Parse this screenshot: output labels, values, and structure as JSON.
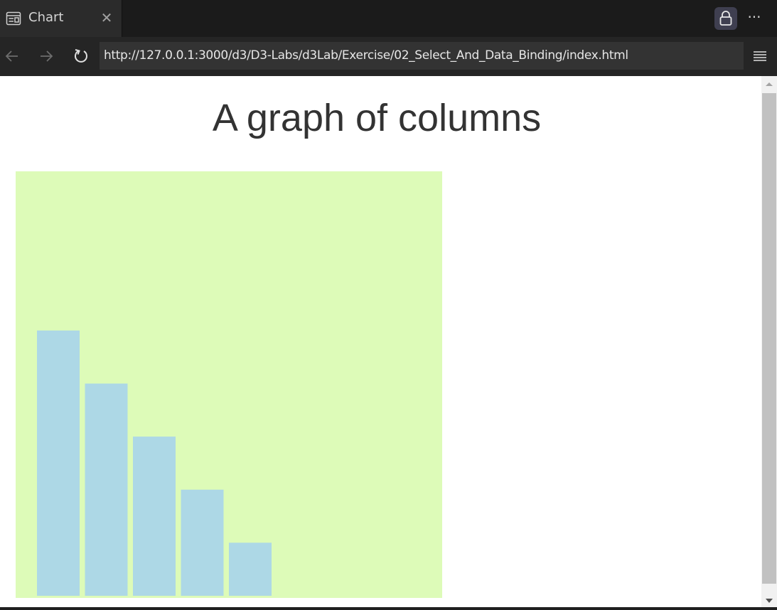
{
  "tab": {
    "title": "Chart",
    "close_symbol": "✕",
    "icon": "page-icon"
  },
  "toolbar": {
    "more_symbol": "···",
    "lock_icon": "lock-icon"
  },
  "nav": {
    "url": "http://127.0.0.1:3000/d3/D3-Labs/d3Lab/Exercise/02_Select_And_Data_Binding/index.html",
    "back_icon": "back-arrow-icon",
    "forward_icon": "forward-arrow-icon",
    "reload_icon": "reload-icon",
    "menu_icon": "hamburger-menu-icon"
  },
  "page": {
    "title": "A graph of columns"
  },
  "chart_data": {
    "type": "bar",
    "values": [
      375,
      300,
      225,
      150,
      75
    ],
    "ylim": [
      0,
      600
    ],
    "bar_color": "#add8e6",
    "background_color": "#ddfbb8",
    "grid": false,
    "axes": false
  },
  "colors": {
    "tabstrip": "#1b1b1b",
    "navbar": "#252525",
    "page_background": "#ffffff",
    "title_text": "#333333"
  }
}
